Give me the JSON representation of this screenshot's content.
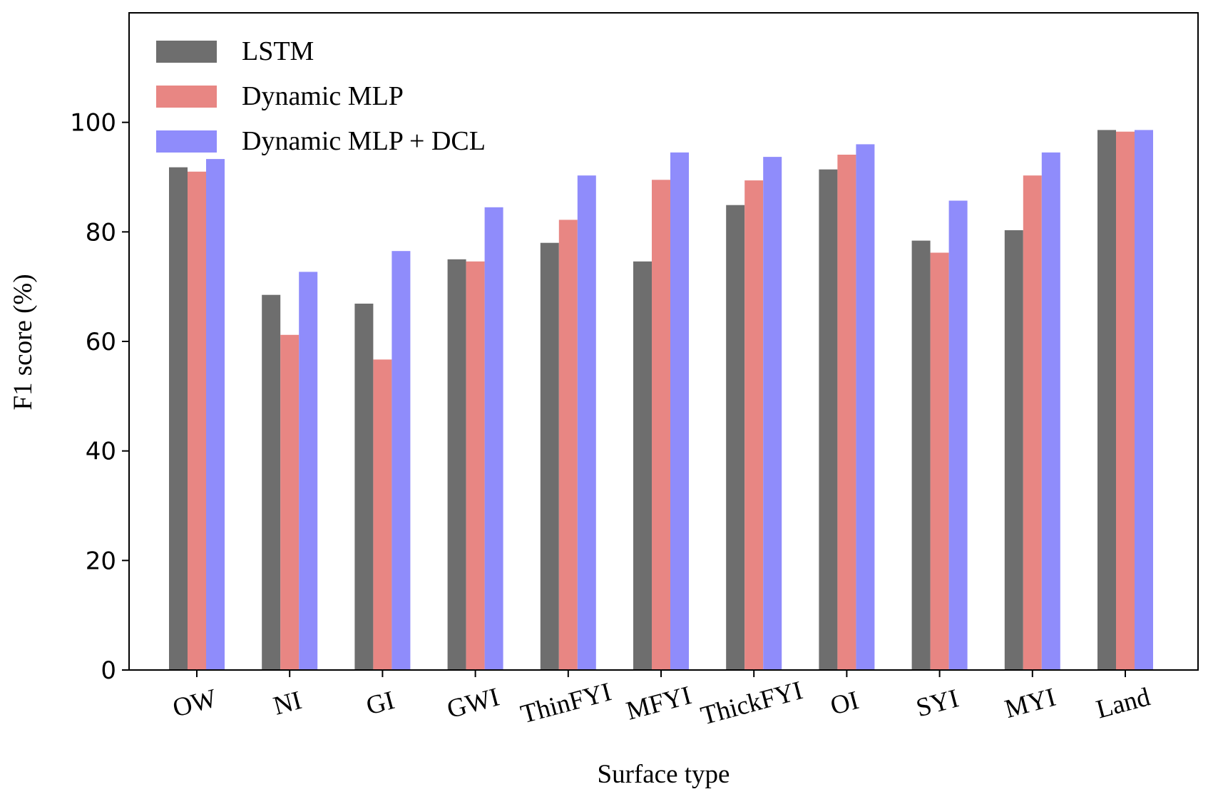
{
  "chart_data": {
    "type": "bar",
    "title": "",
    "xlabel": "Surface type",
    "ylabel": "F1 score (%)",
    "ylim": [
      0,
      120
    ],
    "yticks": [
      "0",
      "20",
      "40",
      "60",
      "80",
      "100"
    ],
    "grid": false,
    "legend_position": "top-left",
    "categories": [
      "OW",
      "NI",
      "GI",
      "GWI",
      "ThinFYI",
      "MFYI",
      "ThickFYI",
      "OI",
      "SYI",
      "MYI",
      "Land"
    ],
    "series": [
      {
        "name": "LSTM",
        "color": "#6e6e6e",
        "values": [
          91.8,
          68.5,
          66.9,
          75.0,
          78.0,
          74.6,
          84.9,
          91.4,
          78.4,
          80.3,
          98.6
        ]
      },
      {
        "name": "Dynamic MLP",
        "color": "#e88683",
        "values": [
          91.0,
          61.2,
          56.7,
          74.6,
          82.2,
          89.5,
          89.4,
          94.1,
          76.2,
          90.3,
          98.3
        ]
      },
      {
        "name": "Dynamic MLP + DCL",
        "color": "#8f8cfb",
        "values": [
          93.3,
          72.7,
          76.5,
          84.5,
          90.3,
          94.5,
          93.7,
          96.0,
          85.7,
          94.5,
          98.6
        ]
      }
    ]
  }
}
